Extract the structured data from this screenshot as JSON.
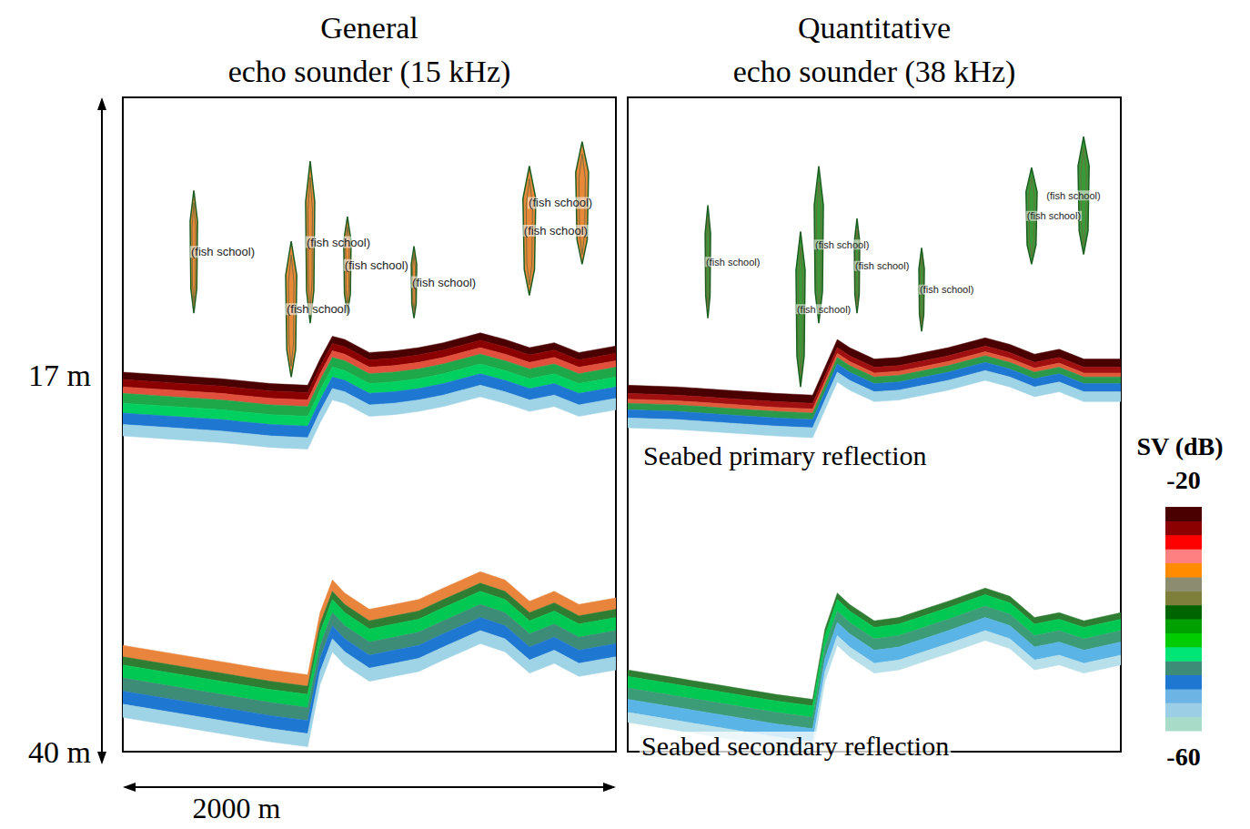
{
  "chart_data": [
    {
      "type": "echogram",
      "title": "General echo sounder (15 kHz)",
      "xlim": [
        0,
        2000
      ],
      "ylim": [
        0,
        40
      ],
      "yticks": [
        {
          "value": 17,
          "label": "17 m"
        },
        {
          "value": 40,
          "label": "40 m"
        }
      ],
      "xlabel": "2000 m",
      "tick_labels": "y",
      "color": "#e8883a",
      "x": [
        0,
        200,
        400,
        600,
        750,
        800,
        850,
        900,
        1000,
        1100,
        1200,
        1300,
        1450,
        1550,
        1650,
        1750,
        1850,
        2000
      ],
      "seabed_primary": [
        16.8,
        17.0,
        17.2,
        17.5,
        17.6,
        16.0,
        14.6,
        14.8,
        15.6,
        15.5,
        15.3,
        15.0,
        14.4,
        14.8,
        15.3,
        15.0,
        15.6,
        15.2
      ],
      "seabed_secondary": [
        33.5,
        34.0,
        34.5,
        35.0,
        35.3,
        31.5,
        29.5,
        30.3,
        31.3,
        31.0,
        30.7,
        30.0,
        29.0,
        29.5,
        30.8,
        30.2,
        31.0,
        30.6
      ],
      "fish_schools": [
        {
          "label": "(fish school)",
          "distance": 288,
          "top": 5.7,
          "bottom": 13.2,
          "width": 30
        },
        {
          "label": "(fish school)",
          "distance": 683,
          "top": 8.8,
          "bottom": 17.1,
          "width": 45
        },
        {
          "label": "(fish school)",
          "distance": 760,
          "top": 3.9,
          "bottom": 13.8,
          "width": 37
        },
        {
          "label": "(fish school)",
          "distance": 911,
          "top": 7.3,
          "bottom": 13.2,
          "width": 30
        },
        {
          "label": "(fish school)",
          "distance": 1181,
          "top": 9.1,
          "bottom": 13.5,
          "width": 22
        },
        {
          "label": "(fish school)",
          "distance": 1649,
          "top": 4.2,
          "bottom": 12.1,
          "width": 52
        },
        {
          "label": "(fish school)",
          "distance": 1863,
          "top": 2.7,
          "bottom": 10.2,
          "width": 52
        }
      ]
    },
    {
      "type": "echogram",
      "title": "Quantitative echo sounder (38 kHz)",
      "xlim": [
        0,
        2000
      ],
      "ylim": [
        0,
        40
      ],
      "tick_labels": false,
      "color": "#3a9a3a",
      "x": [
        0,
        200,
        400,
        600,
        750,
        800,
        850,
        900,
        1000,
        1100,
        1200,
        1300,
        1450,
        1550,
        1650,
        1750,
        1850,
        2000
      ],
      "seabed_primary": [
        17.6,
        17.7,
        17.9,
        18.1,
        18.2,
        16.5,
        14.8,
        15.3,
        16.0,
        15.9,
        15.6,
        15.3,
        14.7,
        15.1,
        15.7,
        15.4,
        16.0,
        16.0
      ],
      "seabed_secondary": [
        35.0,
        35.5,
        36.0,
        36.5,
        36.8,
        32.5,
        30.3,
        31.0,
        32.0,
        31.8,
        31.3,
        30.8,
        30.0,
        30.5,
        31.8,
        31.5,
        32.0,
        31.5
      ],
      "fish_schools": [
        {
          "label": "(fish school)",
          "distance": 325,
          "top": 6.6,
          "bottom": 13.5,
          "width": 22
        },
        {
          "label": "(fish school)",
          "distance": 701,
          "top": 8.2,
          "bottom": 17.7,
          "width": 37
        },
        {
          "label": "(fish school)",
          "distance": 775,
          "top": 4.2,
          "bottom": 13.8,
          "width": 37
        },
        {
          "label": "(fish school)",
          "distance": 930,
          "top": 7.4,
          "bottom": 13.2,
          "width": 22
        },
        {
          "label": "(fish school)",
          "distance": 1192,
          "top": 9.2,
          "bottom": 14.3,
          "width": 22
        },
        {
          "label": "(fish school)",
          "distance": 1638,
          "top": 4.3,
          "bottom": 10.2,
          "width": 45
        },
        {
          "label": "(fish school)",
          "distance": 1849,
          "top": 2.4,
          "bottom": 9.6,
          "width": 45
        }
      ],
      "annotations": {
        "seabed_primary": "Seabed primary reflection",
        "seabed_secondary": "Seabed secondary reflection"
      }
    }
  ],
  "colorbar": {
    "title": "SV (dB)",
    "range": [
      -60,
      -20
    ],
    "ticks": [
      -60,
      -20
    ],
    "colors": [
      "#a8dcc8",
      "#9ccfe6",
      "#6cb4e4",
      "#1e78d2",
      "#3c8c78",
      "#00e676",
      "#00cc00",
      "#00a000",
      "#006400",
      "#7f7f3c",
      "#8c8c70",
      "#ff8c00",
      "#ff8080",
      "#ff0000",
      "#8b0000",
      "#4a0000"
    ]
  }
}
